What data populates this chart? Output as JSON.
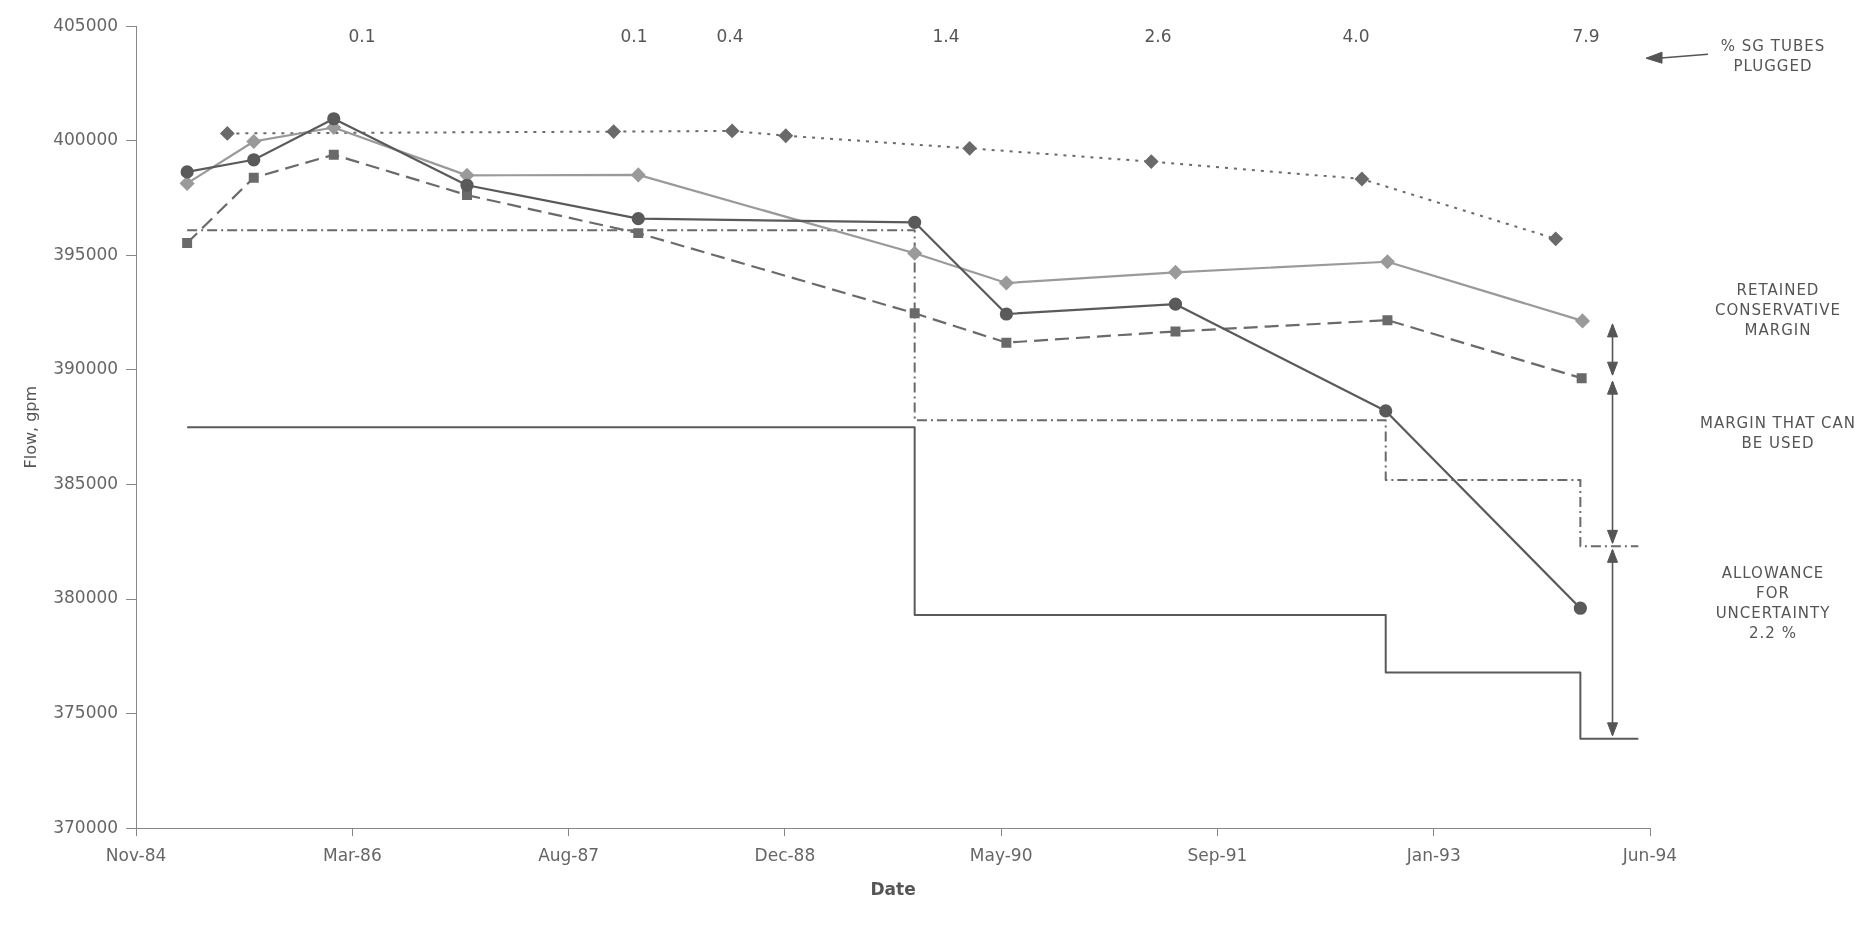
{
  "chart_data": {
    "type": "line",
    "xlabel": "Date",
    "ylabel": "Flow, gpm",
    "xlim": [
      "1984-11-10",
      "1994-06-11"
    ],
    "xticks": [
      {
        "value": "1984-11-10",
        "label": "Nov-84"
      },
      {
        "value": "1986-03-25",
        "label": "Mar-86"
      },
      {
        "value": "1987-08-07",
        "label": "Aug-87"
      },
      {
        "value": "1988-12-19",
        "label": "Dec-88"
      },
      {
        "value": "1990-05-03",
        "label": "May-90"
      },
      {
        "value": "1991-09-15",
        "label": "Sep-91"
      },
      {
        "value": "1993-01-27",
        "label": "Jan-93"
      },
      {
        "value": "1994-06-11",
        "label": "Jun-94"
      }
    ],
    "ylim": [
      370000,
      405000
    ],
    "yticks": [
      370000,
      375000,
      380000,
      385000,
      390000,
      395000,
      400000,
      405000
    ],
    "series": [
      {
        "type": "line",
        "color": "#5a5a5a",
        "marker": "circle",
        "line_style": "solid",
        "x": [
          "1985-03-08",
          "1985-08-09",
          "1986-02-10",
          "1986-12-15",
          "1988-01-15",
          "1989-10-15",
          "1990-05-15",
          "1991-06-10",
          "1992-10-08",
          "1994-01-01"
        ],
        "values": [
          398640,
          399170,
          400960,
          398060,
          396600,
          396440,
          392440,
          392870,
          388210,
          379600
        ]
      },
      {
        "type": "line",
        "color": "#9a9a9a",
        "marker": "diamond",
        "line_style": "solid",
        "x": [
          "1985-03-08",
          "1985-08-09",
          "1986-02-10",
          "1986-12-15",
          "1988-01-15",
          "1989-10-15",
          "1990-05-15",
          "1991-06-10",
          "1992-10-12",
          "1994-01-06"
        ],
        "values": [
          398140,
          399970,
          400580,
          398490,
          398510,
          395090,
          393790,
          394260,
          394720,
          392140
        ]
      },
      {
        "type": "line",
        "color": "#6a6a6a",
        "marker": "square",
        "line_style": "dashed",
        "x": [
          "1985-03-08",
          "1985-08-09",
          "1986-02-10",
          "1986-12-15",
          "1988-01-15",
          "1989-10-15",
          "1990-05-15",
          "1991-06-10",
          "1992-10-12",
          "1994-01-04"
        ],
        "values": [
          395540,
          398390,
          399390,
          397630,
          395970,
          392470,
          391190,
          391680,
          392170,
          389640
        ]
      },
      {
        "type": "line",
        "color": "#6a6a6a",
        "marker": "diamond",
        "line_style": "dotted",
        "x": [
          "1985-06-09",
          "1987-11-19",
          "1988-08-19",
          "1988-12-21",
          "1990-02-19",
          "1991-04-15",
          "1992-08-14",
          "1993-11-05"
        ],
        "values": [
          400320,
          400400,
          400430,
          400220,
          399670,
          399090,
          398330,
          395720
        ]
      },
      {
        "type": "step",
        "color": "#5a5a5a",
        "marker": "none",
        "line_style": "solid",
        "x": [
          "1985-03-08",
          "1989-10-15",
          "1992-10-08",
          "1994-01-01",
          "1994-05-15"
        ],
        "values": [
          387500,
          379300,
          376800,
          373900,
          373900
        ]
      },
      {
        "type": "step",
        "color": "#6a6a6a",
        "marker": "none",
        "line_style": "dashed",
        "x": [
          "1985-03-08",
          "1989-10-15",
          "1992-10-08",
          "1994-01-01",
          "1994-05-15"
        ],
        "values": [
          396100,
          387800,
          385200,
          382300,
          382300
        ]
      }
    ],
    "annotations": [
      "0.1",
      "0.1",
      "0.4",
      "1.4",
      "2.6",
      "4.0",
      "7.9",
      "% SG TUBES PLUGGED",
      "RETAINED CONSERVATIVE MARGIN",
      "MARGIN THAT CAN BE USED",
      "ALLOWANCE FOR UNCERTAINTY 2.2 %"
    ]
  }
}
